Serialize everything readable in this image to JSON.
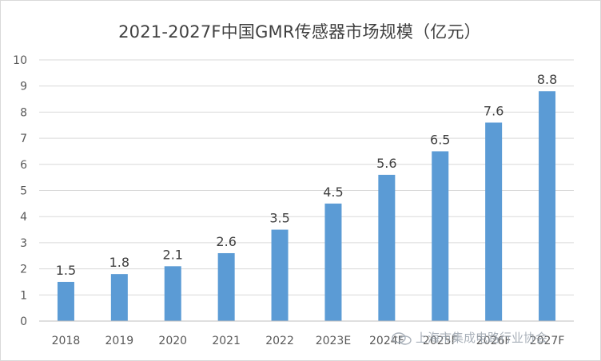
{
  "chart_data": {
    "type": "bar",
    "title": "2021-2027F中国GMR传感器市场规模（亿元）",
    "categories": [
      "2018",
      "2019",
      "2020",
      "2021",
      "2022",
      "2023E",
      "2024F",
      "2025F",
      "2026F",
      "2027F"
    ],
    "values": [
      1.5,
      1.8,
      2.1,
      2.6,
      3.5,
      4.5,
      5.6,
      6.5,
      7.6,
      8.8
    ],
    "data_labels": [
      "1.5",
      "1.8",
      "2.1",
      "2.6",
      "3.5",
      "4.5",
      "5.6",
      "6.5",
      "7.6",
      "8.8"
    ],
    "ylim": [
      0,
      10
    ],
    "yticks": [
      "0",
      "1",
      "2",
      "3",
      "4",
      "5",
      "6",
      "7",
      "8",
      "9",
      "10"
    ],
    "grid": true,
    "bar_color": "#5b9bd5",
    "xlabel": "",
    "ylabel": ""
  },
  "watermark": {
    "text": "上海市集成电路行业协会",
    "icon": "wechat-icon"
  }
}
